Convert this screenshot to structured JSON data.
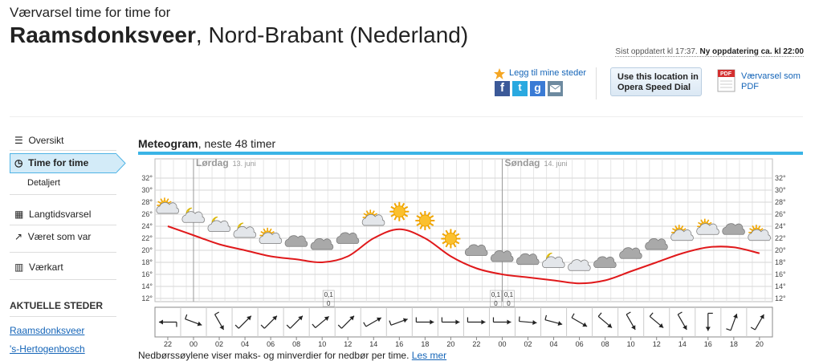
{
  "header": {
    "subtitle": "Værvarsel time for time for",
    "place": "Raamsdonksveer",
    "region": ", Nord-Brabant (Nederland)",
    "last_updated": "Sist oppdatert kl 17:37.",
    "next_update": "Ny oppdatering ca. kl 22:00"
  },
  "actions": {
    "add_place": "Legg til mine steder",
    "opera_button": "Use this location in Opera Speed Dial",
    "pdf": "Værvarsel som PDF"
  },
  "sidebar": {
    "nav": [
      "Oversikt",
      "Time for time",
      "Langtidsvarsel",
      "Været som var",
      "Værkart"
    ],
    "sub": "Detaljert",
    "places_heading": "AKTUELLE STEDER",
    "places": [
      "Raamsdonksveer",
      "'s-Hertogenbosch"
    ]
  },
  "chart_data": {
    "type": "meteogram",
    "title": "Meteogram",
    "subtitle": ", neste 48 timer",
    "days": [
      {
        "name": "Lørdag",
        "date": "13. juni"
      },
      {
        "name": "Søndag",
        "date": "14. juni"
      }
    ],
    "categories": [
      "22",
      "00",
      "02",
      "04",
      "06",
      "08",
      "10",
      "12",
      "14",
      "16",
      "18",
      "20",
      "22",
      "00",
      "02",
      "04",
      "06",
      "08",
      "10",
      "12",
      "14",
      "16",
      "18",
      "20"
    ],
    "series": [
      {
        "color": "#e0191b",
        "values": [
          24,
          22.5,
          21,
          20,
          19,
          18.5,
          18,
          19,
          22,
          23.5,
          22,
          19,
          17,
          16,
          15.5,
          15,
          14.5,
          15,
          16.5,
          18,
          19.5,
          20.5,
          20.5,
          19.5
        ]
      }
    ],
    "ylim": [
      12,
      32
    ],
    "yticks": [
      {
        "value": 12,
        "label": "12°"
      },
      {
        "value": 14,
        "label": "14°"
      },
      {
        "value": 16,
        "label": "16°"
      },
      {
        "value": 18,
        "label": "18°"
      },
      {
        "value": 20,
        "label": "20°"
      },
      {
        "value": 22,
        "label": "22°"
      },
      {
        "value": 24,
        "label": "24°"
      },
      {
        "value": 26,
        "label": "26°"
      },
      {
        "value": 28,
        "label": "28°"
      },
      {
        "value": 30,
        "label": "30°"
      },
      {
        "value": 32,
        "label": "32°"
      }
    ],
    "grid": true,
    "precipitation": {
      "hours": [
        10,
        23,
        24
      ],
      "values": [
        0.1,
        0.1,
        0.1
      ],
      "value_labels": [
        "0,1",
        "0,1",
        "0,1"
      ],
      "min": [
        0,
        0,
        0
      ]
    },
    "wind_direction": [
      270,
      110,
      150,
      45,
      45,
      45,
      50,
      45,
      60,
      70,
      90,
      90,
      90,
      90,
      95,
      105,
      120,
      130,
      150,
      130,
      150,
      180,
      20,
      30
    ]
  },
  "footer": {
    "note": "Nedbørssøylene viser maks- og minverdier for nedbør per time.",
    "link": "Les mer"
  }
}
